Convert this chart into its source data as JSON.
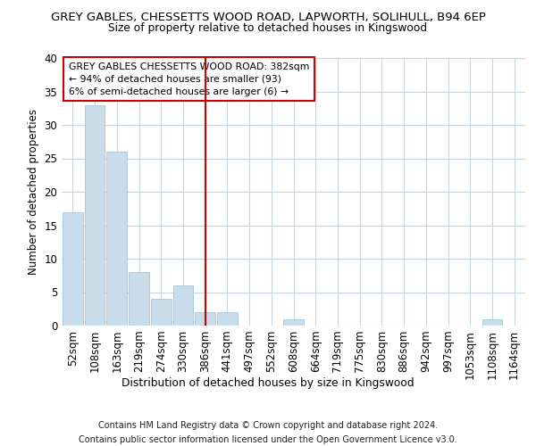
{
  "title1": "GREY GABLES, CHESSETTS WOOD ROAD, LAPWORTH, SOLIHULL, B94 6EP",
  "title2": "Size of property relative to detached houses in Kingswood",
  "xlabel": "Distribution of detached houses by size in Kingswood",
  "ylabel": "Number of detached properties",
  "bin_labels": [
    "52sqm",
    "108sqm",
    "163sqm",
    "219sqm",
    "274sqm",
    "330sqm",
    "386sqm",
    "441sqm",
    "497sqm",
    "552sqm",
    "608sqm",
    "664sqm",
    "719sqm",
    "775sqm",
    "830sqm",
    "886sqm",
    "942sqm",
    "997sqm",
    "1053sqm",
    "1108sqm",
    "1164sqm"
  ],
  "bar_values": [
    17,
    33,
    26,
    8,
    4,
    6,
    2,
    2,
    0,
    0,
    1,
    0,
    0,
    0,
    0,
    0,
    0,
    0,
    0,
    1,
    0
  ],
  "bar_color": "#c9dcea",
  "bar_edgecolor": "#a8c4d8",
  "grid_color": "#c8d4e0",
  "vline_x": 6,
  "vline_color": "#cc0000",
  "annotation_line1": "GREY GABLES CHESSETTS WOOD ROAD: 382sqm",
  "annotation_line2": "← 94% of detached houses are smaller (93)",
  "annotation_line3": "6% of semi-detached houses are larger (6) →",
  "annotation_box_edgecolor": "#cc0000",
  "footer_line1": "Contains HM Land Registry data © Crown copyright and database right 2024.",
  "footer_line2": "Contains public sector information licensed under the Open Government Licence v3.0.",
  "ylim": [
    0,
    40
  ],
  "yticks": [
    0,
    5,
    10,
    15,
    20,
    25,
    30,
    35,
    40
  ],
  "fig_width": 6.0,
  "fig_height": 5.0,
  "dpi": 100
}
